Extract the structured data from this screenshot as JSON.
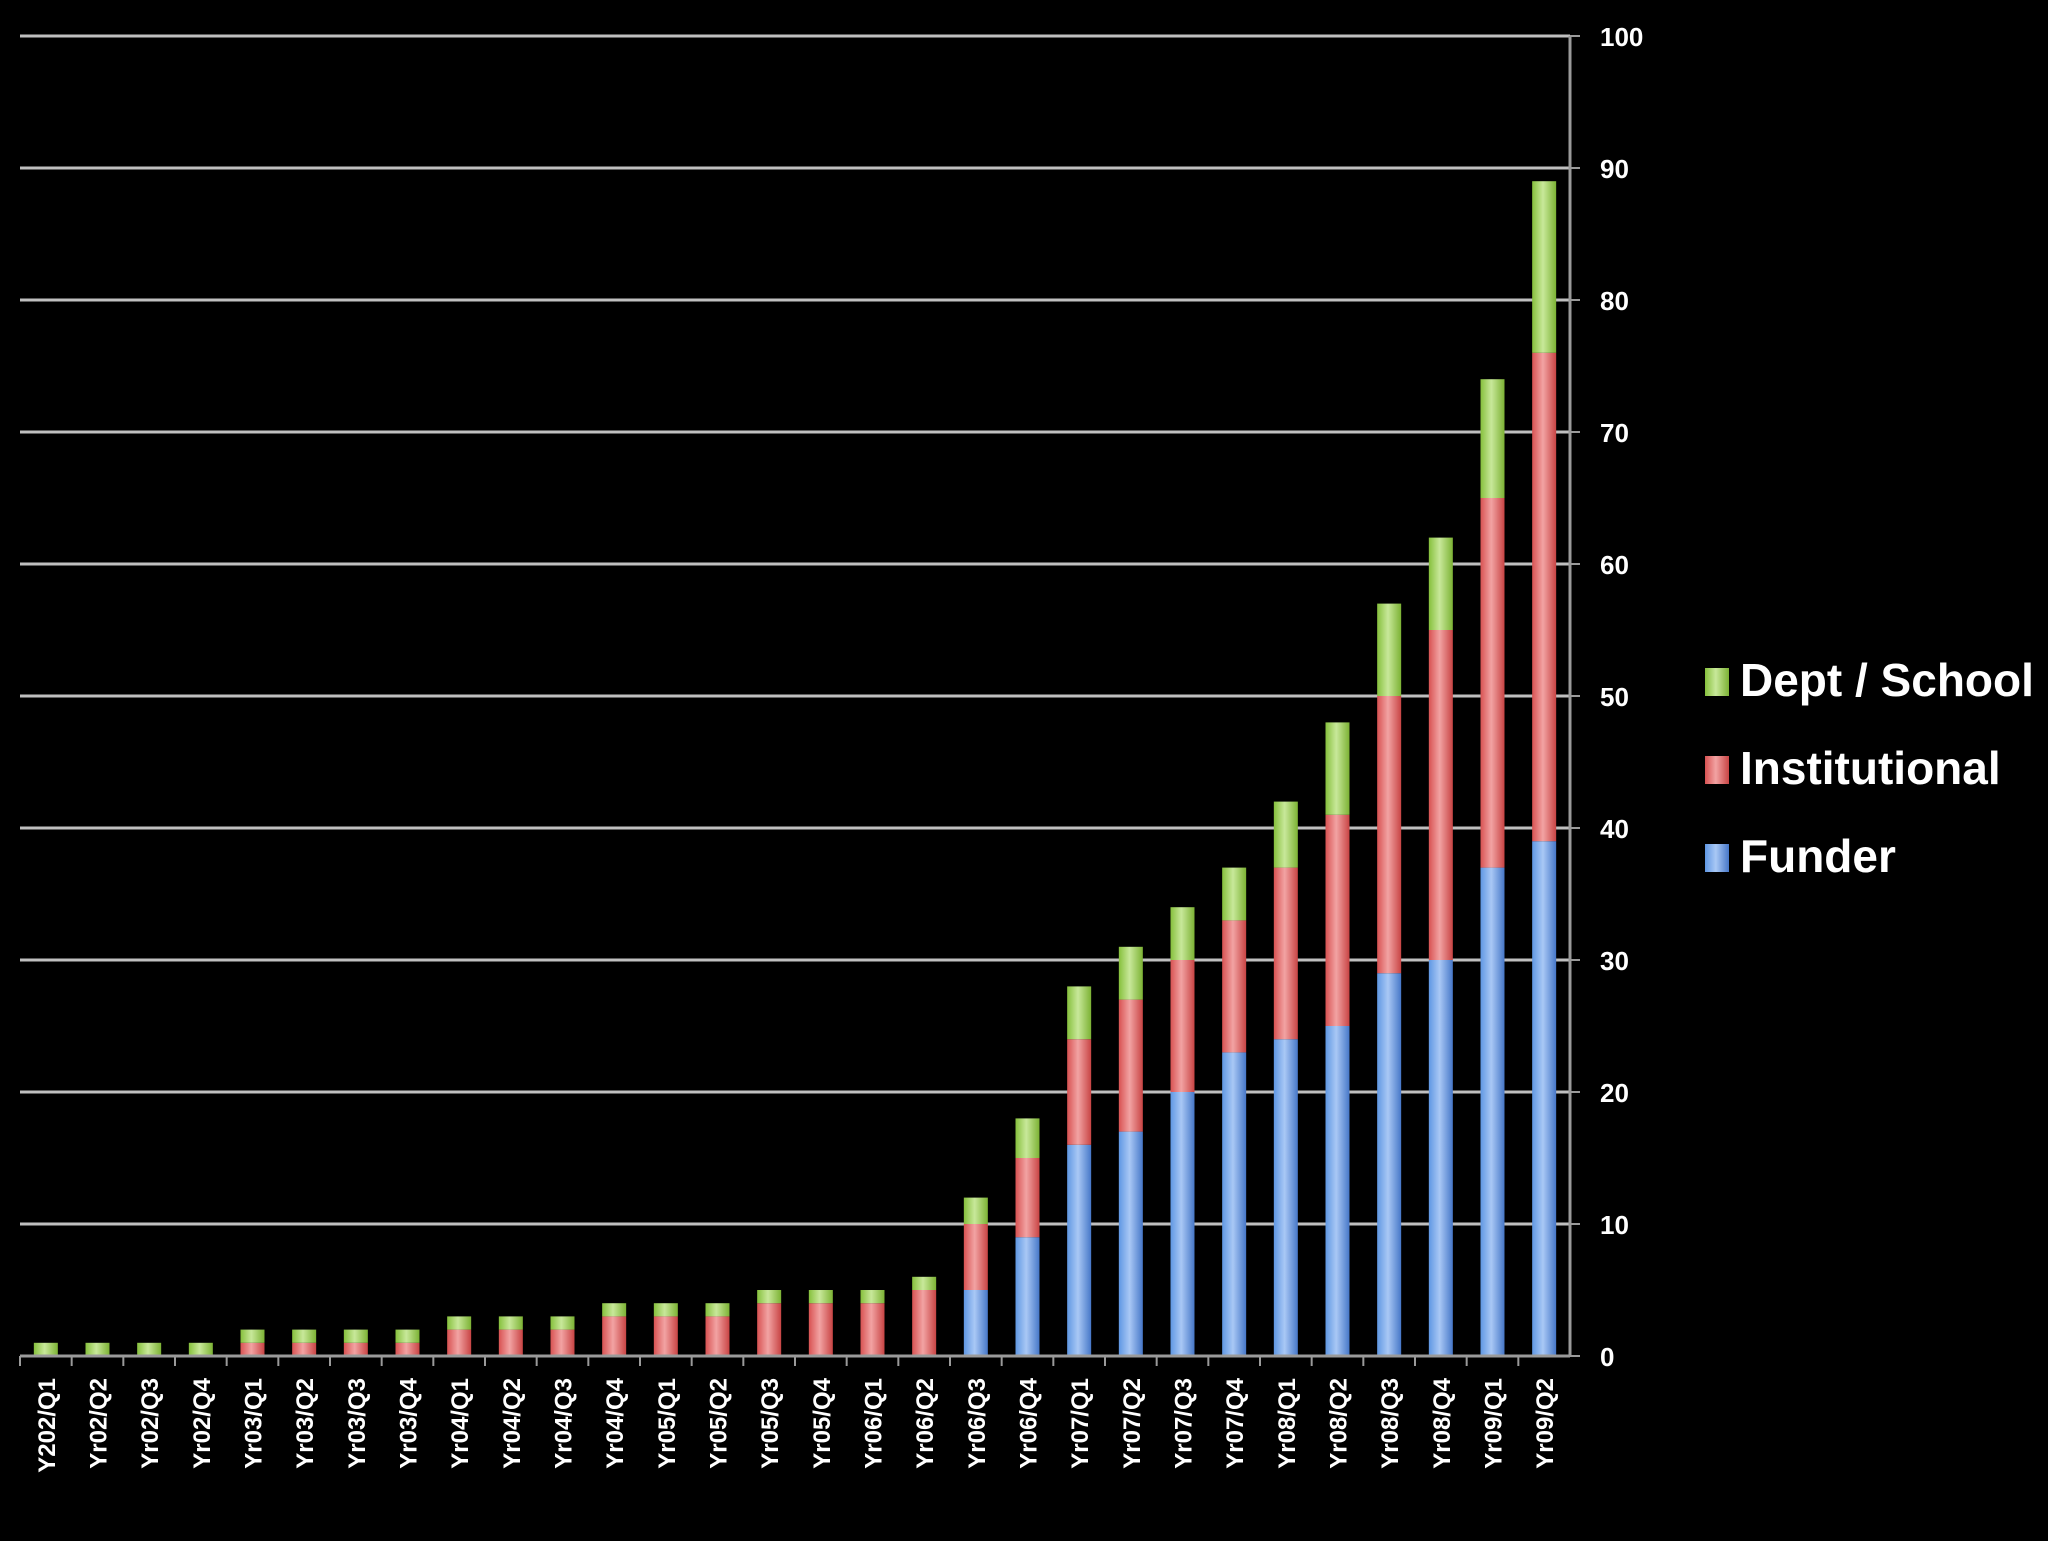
{
  "chart_data": {
    "type": "bar",
    "stacked": true,
    "title": "",
    "xlabel": "",
    "ylabel": "",
    "ylim": [
      0,
      100
    ],
    "yticks": [
      0,
      10,
      20,
      30,
      40,
      50,
      60,
      70,
      80,
      90,
      100
    ],
    "y_axis_side": "right",
    "grid": true,
    "legend_position": "right",
    "categories": [
      "Y202/Q1",
      "Yr02/Q2",
      "Yr02/Q3",
      "Yr02/Q4",
      "Yr03/Q1",
      "Yr03/Q2",
      "Yr03/Q3",
      "Yr03/Q4",
      "Yr04/Q1",
      "Yr04/Q2",
      "Yr04/Q3",
      "Yr04/Q4",
      "Yr05/Q1",
      "Yr05/Q2",
      "Yr05/Q3",
      "Yr05/Q4",
      "Yr06/Q1",
      "Yr06/Q2",
      "Yr06/Q3",
      "Yr06/Q4",
      "Yr07/Q1",
      "Yr07/Q2",
      "Yr07/Q3",
      "Yr07/Q4",
      "Yr08/Q1",
      "Yr08/Q2",
      "Yr08/Q3",
      "Yr08/Q4",
      "Yr09/Q1",
      "Yr09/Q2"
    ],
    "series": [
      {
        "name": "Funder",
        "color": "#4a86d8",
        "values": [
          0,
          0,
          0,
          0,
          0,
          0,
          0,
          0,
          0,
          0,
          0,
          0,
          0,
          0,
          0,
          0,
          0,
          0,
          5,
          9,
          16,
          17,
          20,
          23,
          24,
          25,
          29,
          30,
          37,
          39
        ]
      },
      {
        "name": "Institutional",
        "color": "#d84a4a",
        "values": [
          0,
          0,
          0,
          0,
          1,
          1,
          1,
          1,
          2,
          2,
          2,
          3,
          3,
          3,
          4,
          4,
          4,
          5,
          5,
          6,
          8,
          10,
          10,
          10,
          13,
          16,
          21,
          25,
          28,
          37
        ]
      },
      {
        "name": "Dept / School",
        "color": "#8cc63f",
        "values": [
          1,
          1,
          1,
          1,
          1,
          1,
          1,
          1,
          1,
          1,
          1,
          1,
          1,
          1,
          1,
          1,
          1,
          1,
          2,
          3,
          4,
          4,
          4,
          4,
          5,
          7,
          7,
          7,
          9,
          13
        ]
      }
    ],
    "legend_order": [
      "Dept / School",
      "Institutional",
      "Funder"
    ]
  }
}
